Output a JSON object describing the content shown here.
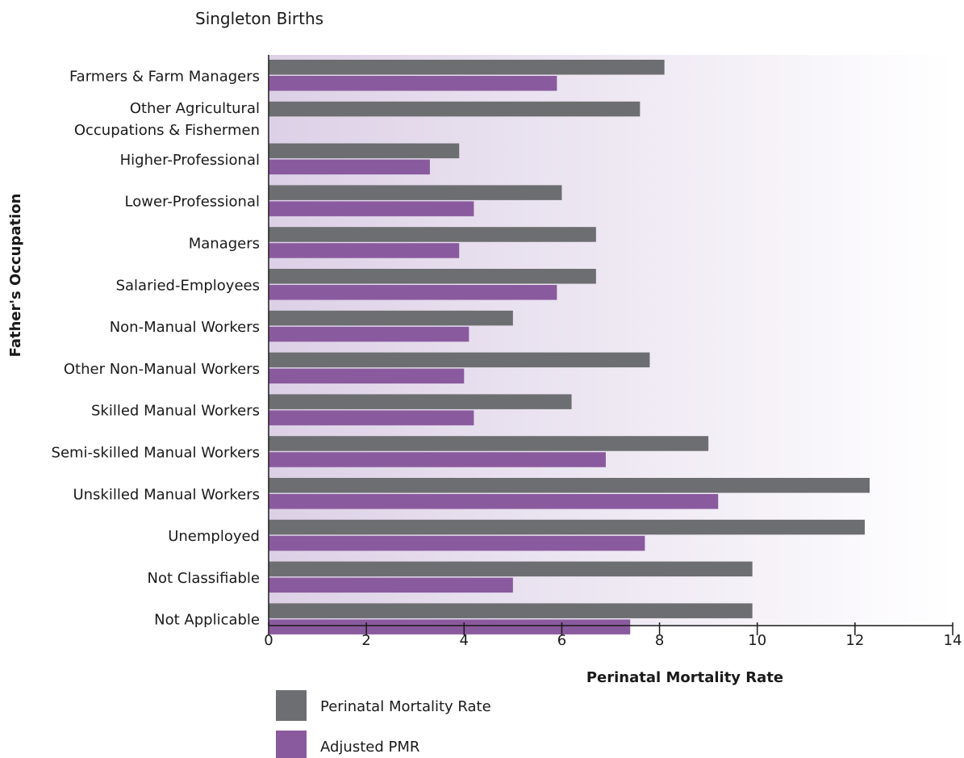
{
  "chart_data": {
    "type": "bar",
    "orientation": "horizontal",
    "title": "Singleton Births",
    "xlabel": "Perinatal Mortality Rate",
    "ylabel": "Father's Occupation",
    "xlim": [
      0,
      14
    ],
    "xticks": [
      0,
      2,
      4,
      6,
      8,
      10,
      12,
      14
    ],
    "grid": false,
    "legend_position": "bottom-left",
    "categories": [
      "Farmers & Farm Managers",
      "Other Agricultural Occupations & Fishermen",
      "Higher-Professional",
      "Lower-Professional",
      "Managers",
      "Salaried-Employees",
      "Non-Manual Workers",
      "Other Non-Manual Workers",
      "Skilled Manual Workers",
      "Semi-skilled Manual Workers",
      "Unskilled Manual Workers",
      "Unemployed",
      "Not Classifiable",
      "Not Applicable"
    ],
    "category_lines": [
      [
        "Farmers & Farm Managers"
      ],
      [
        "Other Agricultural",
        "Occupations & Fishermen"
      ],
      [
        "Higher-Professional"
      ],
      [
        "Lower-Professional"
      ],
      [
        "Managers"
      ],
      [
        "Salaried-Employees"
      ],
      [
        "Non-Manual Workers"
      ],
      [
        "Other Non-Manual Workers"
      ],
      [
        "Skilled Manual Workers"
      ],
      [
        "Semi-skilled Manual Workers"
      ],
      [
        "Unskilled Manual Workers"
      ],
      [
        "Unemployed"
      ],
      [
        "Not Classifiable"
      ],
      [
        "Not Applicable"
      ]
    ],
    "series": [
      {
        "name": "Perinatal Mortality Rate",
        "color": "#6d6e71",
        "values": [
          8.1,
          7.6,
          3.9,
          6.0,
          6.7,
          6.7,
          5.0,
          7.8,
          6.2,
          9.0,
          12.3,
          12.2,
          9.9,
          9.9
        ]
      },
      {
        "name": "Adjusted PMR",
        "color": "#8a5a9e",
        "values": [
          5.9,
          null,
          3.3,
          4.2,
          3.9,
          5.9,
          4.1,
          4.0,
          4.2,
          6.9,
          9.2,
          7.7,
          5.0,
          7.4
        ]
      }
    ],
    "background_gradient": [
      "#dcd0e6",
      "#ffffff"
    ]
  }
}
